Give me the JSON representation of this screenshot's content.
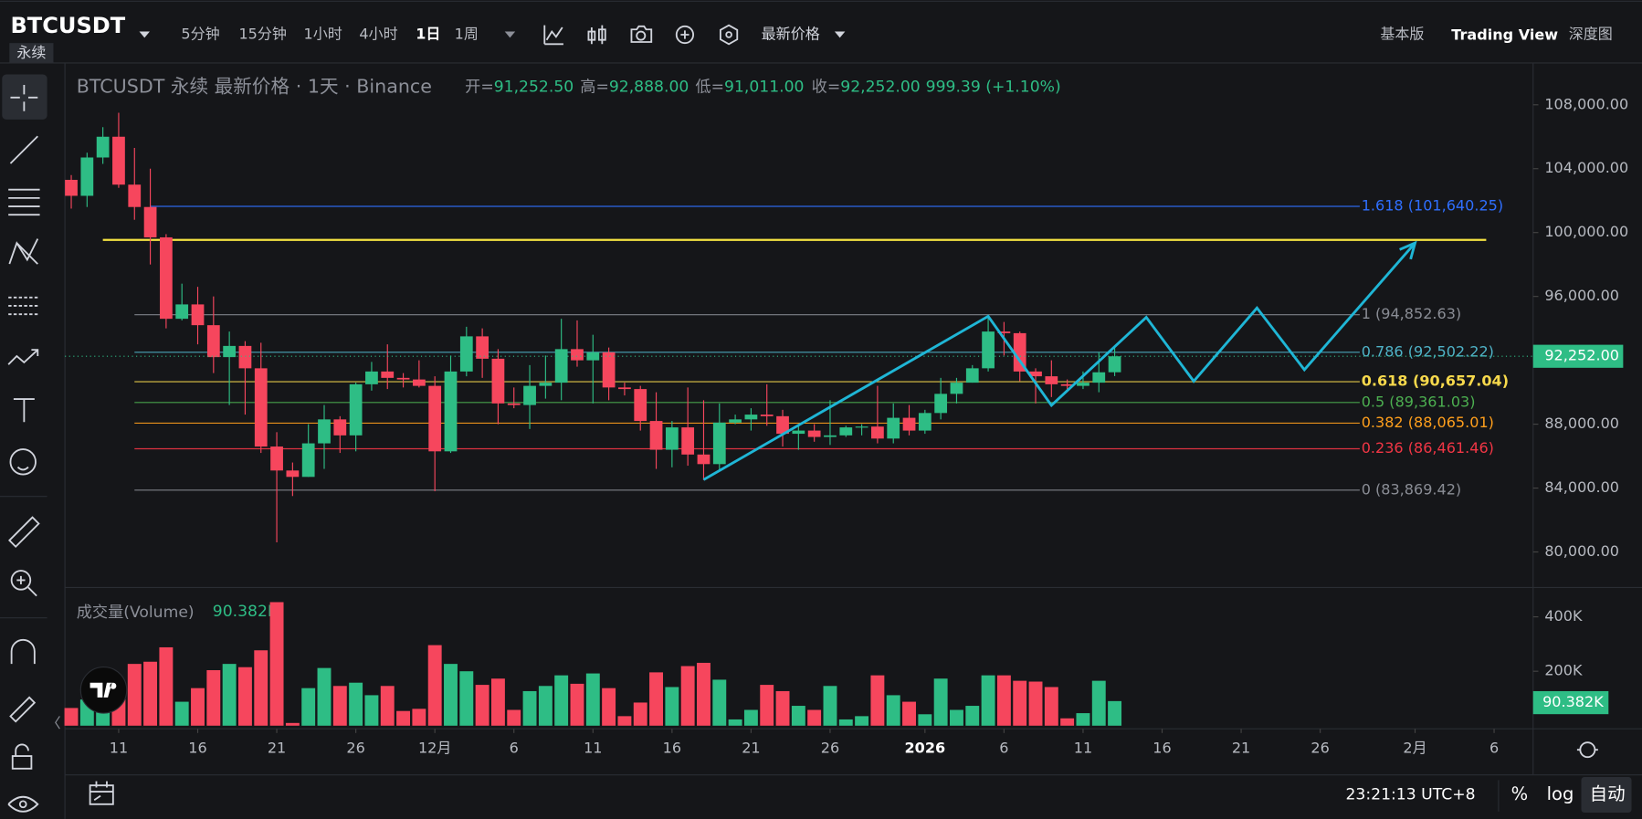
{
  "toolbar": {
    "symbol": "BTCUSDT",
    "contract": "永续",
    "intervals": [
      "5分钟",
      "15分钟",
      "1小时",
      "4小时",
      "1日",
      "1周"
    ],
    "price_type": "最新价格",
    "views": [
      "基本版",
      "Trading View",
      "深度图"
    ]
  },
  "legend": {
    "title": "BTCUSDT 永续 最新价格 · 1天 · Binance",
    "ohlc": [
      {
        "key": "开=",
        "value": "91,252.50"
      },
      {
        "key": "高=",
        "value": "92,888.00"
      },
      {
        "key": "低=",
        "value": "91,011.00"
      },
      {
        "key": "收=",
        "value": "92,252.00"
      }
    ],
    "change": "999.39 (+1.10%)",
    "volume_title": "成交量(Volume)"
  },
  "bottom_bar": {
    "time": "23:21:13 UTC+8",
    "percent": "%",
    "log": "log",
    "auto": "自动"
  },
  "chart_data": {
    "type": "candlestick",
    "up_color": "#2ebd85",
    "down_color": "#f6465d",
    "xlim": [
      -0.4,
      92.4
    ],
    "xticks": [
      {
        "value": 3,
        "label": "11"
      },
      {
        "value": 8,
        "label": "16"
      },
      {
        "value": 13,
        "label": "21"
      },
      {
        "value": 18,
        "label": "26"
      },
      {
        "value": 23,
        "label": "12月"
      },
      {
        "value": 28,
        "label": "6"
      },
      {
        "value": 33,
        "label": "11"
      },
      {
        "value": 38,
        "label": "16"
      },
      {
        "value": 43,
        "label": "21"
      },
      {
        "value": 48,
        "label": "26"
      },
      {
        "value": 54,
        "label": "2026"
      },
      {
        "value": 59,
        "label": "6"
      },
      {
        "value": 64,
        "label": "11"
      },
      {
        "value": 69,
        "label": "16"
      },
      {
        "value": 74,
        "label": "21"
      },
      {
        "value": 79,
        "label": "26"
      },
      {
        "value": 85,
        "label": "2月"
      },
      {
        "value": 90,
        "label": "6"
      }
    ],
    "ylim": [
      77840,
      110620
    ],
    "yticks": [
      {
        "value": 108000,
        "label": "108,000.00"
      },
      {
        "value": 104000,
        "label": "104,000.00"
      },
      {
        "value": 100000,
        "label": "100,000.00"
      },
      {
        "value": 96000,
        "label": "96,000.00"
      },
      {
        "value": 92000,
        "label": "92,000.00"
      },
      {
        "value": 88000,
        "label": "88,000.00"
      },
      {
        "value": 84000,
        "label": "84,000.00"
      },
      {
        "value": 80000,
        "label": "80,000.00"
      }
    ],
    "candles": [
      [
        103300,
        103600,
        101500,
        102300
      ],
      [
        102300,
        105000,
        101600,
        104700
      ],
      [
        104700,
        106600,
        104300,
        106000
      ],
      [
        106000,
        107500,
        102800,
        103000
      ],
      [
        103000,
        105300,
        100800,
        101600
      ],
      [
        101600,
        104000,
        98000,
        99700
      ],
      [
        99700,
        99900,
        94000,
        94600
      ],
      [
        94600,
        96800,
        94500,
        95500
      ],
      [
        95500,
        96600,
        93000,
        94200
      ],
      [
        94200,
        96000,
        91200,
        92200
      ],
      [
        92200,
        93800,
        89200,
        92900
      ],
      [
        92900,
        93200,
        88600,
        91500
      ],
      [
        91500,
        93100,
        86200,
        86600
      ],
      [
        86600,
        87500,
        80600,
        85100
      ],
      [
        85100,
        85600,
        83500,
        84700
      ],
      [
        84700,
        88000,
        84700,
        86800
      ],
      [
        86800,
        89200,
        85200,
        88300
      ],
      [
        88300,
        88500,
        86200,
        87300
      ],
      [
        87300,
        90600,
        86300,
        90500
      ],
      [
        90500,
        91900,
        90100,
        91300
      ],
      [
        91300,
        93000,
        90200,
        90900
      ],
      [
        90900,
        91200,
        90300,
        90800
      ],
      [
        90800,
        92000,
        90300,
        90400
      ],
      [
        90400,
        91000,
        83800,
        86300
      ],
      [
        86300,
        92300,
        86200,
        91300
      ],
      [
        91300,
        94100,
        91000,
        93500
      ],
      [
        93500,
        94000,
        90900,
        92100
      ],
      [
        92100,
        92700,
        88000,
        89300
      ],
      [
        89300,
        90300,
        89000,
        89200
      ],
      [
        89200,
        91700,
        87700,
        90400
      ],
      [
        90400,
        92300,
        89600,
        90600
      ],
      [
        90600,
        94600,
        89500,
        92700
      ],
      [
        92700,
        94500,
        91600,
        92000
      ],
      [
        92000,
        93600,
        89300,
        92500
      ],
      [
        92500,
        92800,
        89500,
        90300
      ],
      [
        90300,
        90600,
        89800,
        90200
      ],
      [
        90200,
        90400,
        87600,
        88200
      ],
      [
        88200,
        90000,
        85200,
        86400
      ],
      [
        86400,
        88200,
        85300,
        87800
      ],
      [
        87800,
        90300,
        85400,
        86100
      ],
      [
        86100,
        89500,
        84500,
        85500
      ],
      [
        85500,
        89300,
        85100,
        88100
      ],
      [
        88100,
        88600,
        88000,
        88300
      ],
      [
        88300,
        89000,
        87600,
        88600
      ],
      [
        88600,
        90500,
        87900,
        88500
      ],
      [
        88500,
        88900,
        86600,
        87400
      ],
      [
        87400,
        87900,
        86400,
        87600
      ],
      [
        87600,
        88000,
        86900,
        87200
      ],
      [
        87200,
        89500,
        86700,
        87300
      ],
      [
        87300,
        87900,
        87200,
        87800
      ],
      [
        87800,
        88000,
        87300,
        87850
      ],
      [
        87850,
        90400,
        86800,
        87100
      ],
      [
        87100,
        89300,
        86800,
        88400
      ],
      [
        88400,
        89200,
        87300,
        87600
      ],
      [
        87600,
        88900,
        87400,
        88700
      ],
      [
        88700,
        90900,
        88300,
        89900
      ],
      [
        89900,
        90900,
        89300,
        90600
      ],
      [
        90600,
        91700,
        90600,
        91500
      ],
      [
        91500,
        94800,
        91300,
        93800
      ],
      [
        93800,
        94400,
        92300,
        93700
      ],
      [
        93700,
        93800,
        90700,
        91300
      ],
      [
        91300,
        91500,
        89300,
        91000
      ],
      [
        91000,
        92000,
        89700,
        90500
      ],
      [
        90500,
        90800,
        90200,
        90400
      ],
      [
        90400,
        91300,
        90200,
        90600
      ],
      [
        90600,
        92500,
        90000,
        91250
      ],
      [
        91252.5,
        92888,
        91011,
        92252
      ]
    ],
    "last_price_label": "92,252.00",
    "volume": [
      65,
      96,
      108,
      123,
      227,
      235,
      288,
      88,
      138,
      204,
      227,
      215,
      277,
      454,
      10,
      138,
      212,
      146,
      158,
      112,
      146,
      54,
      62,
      296,
      227,
      200,
      150,
      173,
      58,
      127,
      146,
      185,
      154,
      192,
      138,
      35,
      85,
      196,
      142,
      219,
      231,
      169,
      23,
      58,
      150,
      127,
      73,
      58,
      146,
      23,
      35,
      185,
      112,
      88,
      42,
      173,
      58,
      73,
      185,
      185,
      165,
      162,
      142,
      27,
      46,
      165,
      90.382
    ],
    "volume_last_label": "90.382K",
    "vlim": [
      0,
      504
    ],
    "vticks": [
      {
        "value": 400,
        "label": "400K"
      },
      {
        "value": 200,
        "label": "200K"
      }
    ],
    "hline": 99540,
    "hline_color": "#f5e342",
    "fib_levels": [
      {
        "label": "1.618 (101,640.25)",
        "value": 101640.25,
        "color": "#2f6fff"
      },
      {
        "label": "1 (94,852.63)",
        "value": 94852.63,
        "color": "#8a8d95"
      },
      {
        "label": "0.786 (92,502.22)",
        "value": 92502.22,
        "color": "#4fb3c8"
      },
      {
        "label": "0.618 (90,657.04)",
        "value": 90657.04,
        "color": "#f7d94c"
      },
      {
        "label": "0.5 (89,361.03)",
        "value": 89361.03,
        "color": "#4caf50"
      },
      {
        "label": "0.382 (88,065.01)",
        "value": 88065.01,
        "color": "#ff9f1c"
      },
      {
        "label": "0.236 (86,461.46)",
        "value": 86461.46,
        "color": "#f23645"
      },
      {
        "label": "0 (83,869.42)",
        "value": 83869.42,
        "color": "#8a8d95"
      }
    ],
    "path_color": "#1fb6d6",
    "path": {
      "x": [
        40,
        58,
        62,
        68,
        71,
        75,
        78,
        85
      ],
      "y": [
        84525,
        94755,
        89180,
        94690,
        90690,
        95280,
        91410,
        99345
      ]
    }
  }
}
